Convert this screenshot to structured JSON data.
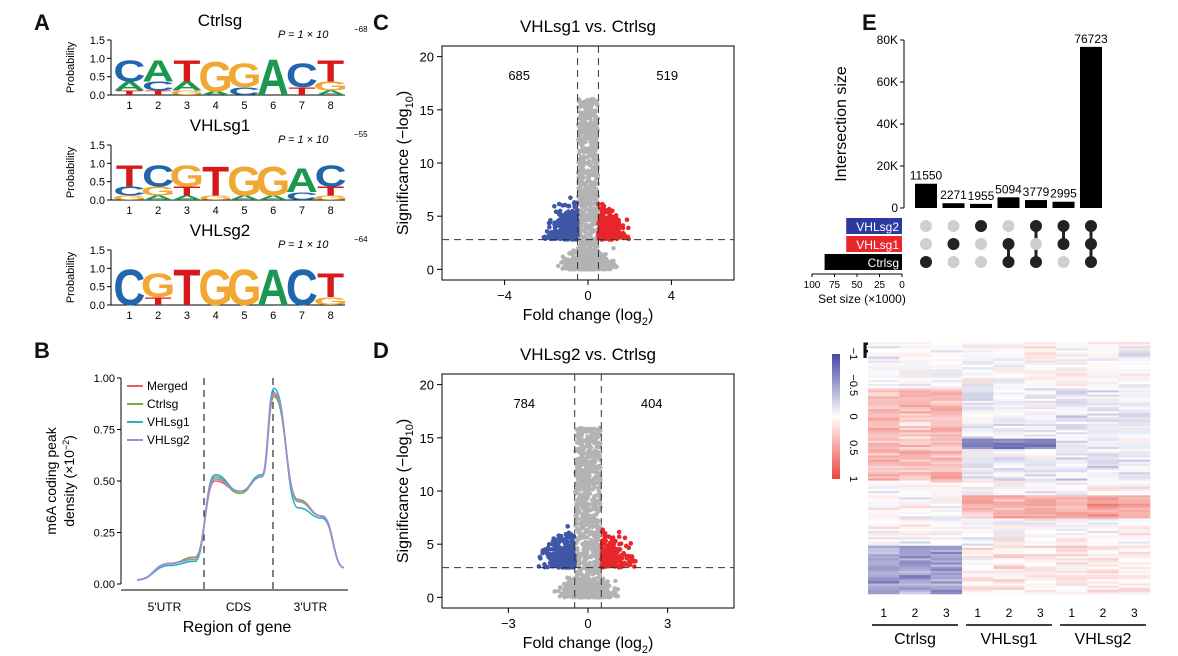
{
  "panels": {
    "A": {
      "label": "A",
      "motifs": [
        {
          "title": "Ctrlsg",
          "pvalue": "P = 1 × 10",
          "exp": "−68",
          "letters": [
            [
              "C",
              "A",
              "T"
            ],
            [
              "A",
              "C",
              "T"
            ],
            [
              "T",
              "A",
              "G"
            ],
            [
              "G",
              "A"
            ],
            [
              "G",
              "C"
            ],
            [
              "A"
            ],
            [
              "C",
              "T"
            ],
            [
              "T",
              "G",
              "A"
            ]
          ]
        },
        {
          "title": "VHLsg1",
          "pvalue": "P = 1 × 10",
          "exp": "−55",
          "letters": [
            [
              "T",
              "C",
              "G"
            ],
            [
              "C",
              "G",
              "A"
            ],
            [
              "G",
              "T",
              "A"
            ],
            [
              "T",
              "G"
            ],
            [
              "G",
              "A"
            ],
            [
              "G",
              "A"
            ],
            [
              "A",
              "C"
            ],
            [
              "C",
              "T",
              "G"
            ]
          ]
        },
        {
          "title": "VHLsg2",
          "pvalue": "P = 1 × 10",
          "exp": "−64",
          "letters": [
            [
              "C"
            ],
            [
              "G",
              "T"
            ],
            [
              "T"
            ],
            [
              "G"
            ],
            [
              "G"
            ],
            [
              "A"
            ],
            [
              "C"
            ],
            [
              "T",
              "G"
            ]
          ]
        }
      ],
      "ylabel": "Probability",
      "yticks": [
        "1.5",
        "1.0",
        "0.5",
        "0.0"
      ],
      "positions": [
        "1",
        "2",
        "3",
        "4",
        "5",
        "6",
        "7",
        "8"
      ],
      "letter_colors": {
        "A": "#1a9850",
        "C": "#2166ac",
        "G": "#f1a832",
        "T": "#d7191c"
      }
    },
    "B": {
      "label": "B",
      "ylabel_line1": "m6A coding peak",
      "ylabel_line2": "density (×10",
      "ylabel_exp": "−2",
      "ylabel_close": ")",
      "xlabel": "Region of gene",
      "regions": [
        "5'UTR",
        "CDS",
        "3'UTR"
      ],
      "yticks": [
        "1.00",
        "0.75",
        "0.50",
        "0.25",
        "0.00"
      ],
      "legend": [
        {
          "name": "Merged",
          "color": "#e5625e"
        },
        {
          "name": "Ctrlsg",
          "color": "#6bb04a"
        },
        {
          "name": "VHLsg1",
          "color": "#25b7b7"
        },
        {
          "name": "VHLsg2",
          "color": "#a888d6"
        }
      ]
    },
    "C": {
      "label": "C",
      "title": "VHLsg1 vs. Ctrlsg",
      "left_count": "685",
      "right_count": "519",
      "xlabel": "Fold change (log",
      "xlabel_sub": "2",
      "ylabel": "Significance (−log",
      "ylabel_sub": "10",
      "xticks": [
        "−4",
        "0",
        "4"
      ],
      "yticks": [
        "20",
        "15",
        "10",
        "5",
        "0"
      ]
    },
    "D": {
      "label": "D",
      "title": "VHLsg2 vs. Ctrlsg",
      "left_count": "784",
      "right_count": "404",
      "xlabel": "Fold change (log",
      "xlabel_sub": "2",
      "ylabel": "Significance (−log",
      "ylabel_sub": "10",
      "xticks": [
        "−3",
        "0",
        "3"
      ],
      "yticks": [
        "20",
        "15",
        "10",
        "5",
        "0"
      ]
    },
    "E": {
      "label": "E",
      "ylabel": "Intersection size",
      "yticks": [
        "80K",
        "60K",
        "40K",
        "20K",
        "0"
      ],
      "bars": [
        "11550",
        "2271",
        "1955",
        "5094",
        "3779",
        "2995",
        "76723"
      ],
      "sets": [
        {
          "name": "VHLsg2",
          "color": "#2b3aa0"
        },
        {
          "name": "VHLsg1",
          "color": "#e8262b"
        },
        {
          "name": "Ctrlsg",
          "color": "#000000"
        }
      ],
      "setsize_ticks": [
        "100",
        "75",
        "50",
        "25",
        "0"
      ],
      "setsize_label": "Set size (×1000)"
    },
    "F": {
      "label": "F",
      "scale_ticks": [
        "−1",
        "−0.5",
        "0",
        "0.5",
        "1"
      ],
      "col_numbers": [
        "1",
        "2",
        "3",
        "1",
        "2",
        "3",
        "1",
        "2",
        "3"
      ],
      "groups": [
        "Ctrlsg",
        "VHLsg1",
        "VHLsg2"
      ]
    }
  },
  "chart_data": [
    {
      "type": "line",
      "panel": "B",
      "xlabel": "Region of gene",
      "ylim": [
        0,
        1.0
      ],
      "series": [
        {
          "name": "Merged",
          "values": [
            0.02,
            0.1,
            0.13,
            0.5,
            0.45,
            0.52,
            0.92,
            0.4,
            0.33,
            0.08
          ]
        },
        {
          "name": "Ctrlsg",
          "values": [
            0.02,
            0.1,
            0.13,
            0.52,
            0.44,
            0.53,
            0.91,
            0.41,
            0.33,
            0.08
          ]
        },
        {
          "name": "VHLsg1",
          "values": [
            0.02,
            0.09,
            0.11,
            0.53,
            0.45,
            0.53,
            0.95,
            0.37,
            0.32,
            0.08
          ]
        },
        {
          "name": "VHLsg2",
          "values": [
            0.02,
            0.1,
            0.12,
            0.51,
            0.45,
            0.52,
            0.93,
            0.4,
            0.33,
            0.08
          ]
        }
      ]
    },
    {
      "type": "scatter",
      "panel": "C",
      "title": "VHLsg1 vs. Ctrlsg",
      "xlim": [
        -7,
        7
      ],
      "ylim": [
        -1,
        21
      ],
      "down": 685,
      "up": 519
    },
    {
      "type": "scatter",
      "panel": "D",
      "title": "VHLsg2 vs. Ctrlsg",
      "xlim": [
        -5.5,
        5.5
      ],
      "ylim": [
        -1,
        21
      ],
      "down": 784,
      "up": 404
    },
    {
      "type": "bar",
      "panel": "E",
      "ylabel": "Intersection size",
      "categories": [
        "Ctrlsg",
        "VHLsg1",
        "VHLsg2",
        "Ctrlsg+VHLsg1",
        "Ctrlsg+VHLsg2",
        "VHLsg1+VHLsg2",
        "All"
      ],
      "values": [
        11550,
        2271,
        1955,
        5094,
        3779,
        2995,
        76723
      ],
      "ylim": [
        0,
        80000
      ]
    },
    {
      "type": "heatmap",
      "panel": "F",
      "columns": 9,
      "groups": [
        "Ctrlsg",
        "VHLsg1",
        "VHLsg2"
      ],
      "range": [
        -1,
        1
      ]
    }
  ]
}
